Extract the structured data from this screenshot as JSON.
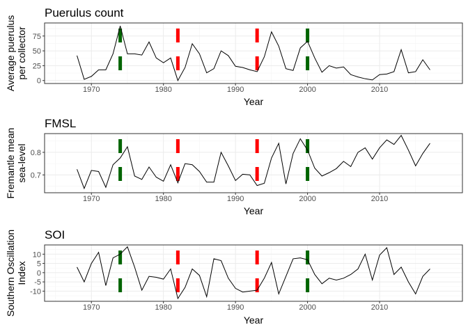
{
  "chart_data": [
    {
      "type": "line",
      "title": "Puerulus count",
      "xlabel": "Year",
      "ylabel": [
        "Average puerulus",
        "per collector"
      ],
      "xlim": [
        1963.5,
        2021.5
      ],
      "ylim": [
        -5,
        97
      ],
      "xticks": [
        1970,
        1980,
        1990,
        2000,
        2010
      ],
      "yticks": [
        0,
        25,
        50,
        75
      ],
      "ytick_labels": [
        "0",
        "25",
        "50",
        "75"
      ],
      "grid": true,
      "series": [
        {
          "x": [
            1968,
            1969,
            1970,
            1971,
            1972,
            1973,
            1974,
            1975,
            1976,
            1977,
            1978,
            1979,
            1980,
            1981,
            1982,
            1983,
            1984,
            1985,
            1986,
            1987,
            1988,
            1989,
            1990,
            1991,
            1992,
            1993,
            1994,
            1995,
            1996,
            1997,
            1998,
            1999,
            2000,
            2001,
            2002,
            2003,
            2004,
            2005,
            2006,
            2007,
            2008,
            2009,
            2010,
            2011,
            2012,
            2013,
            2014,
            2015,
            2016,
            2017
          ],
          "y": [
            42,
            2,
            7,
            18,
            18,
            45,
            92,
            45,
            45,
            43,
            65,
            38,
            30,
            38,
            0,
            22,
            62,
            45,
            13,
            20,
            50,
            42,
            24,
            22,
            18,
            15,
            40,
            82,
            58,
            20,
            17,
            55,
            66,
            38,
            14,
            25,
            21,
            23,
            10,
            6,
            3,
            1,
            10,
            11,
            15,
            52,
            13,
            15,
            35,
            18
          ]
        }
      ]
    },
    {
      "type": "line",
      "title": "FMSL",
      "xlabel": "Year",
      "ylabel": [
        "Fremantle mean",
        "sea-level"
      ],
      "xlim": [
        1963.5,
        2021.5
      ],
      "ylim": [
        0.621,
        0.883
      ],
      "xticks": [
        1970,
        1980,
        1990,
        2000,
        2010
      ],
      "yticks": [
        0.7,
        0.8
      ],
      "ytick_labels": [
        "0.7",
        "0.8"
      ],
      "grid": true,
      "series": [
        {
          "x": [
            1968,
            1969,
            1970,
            1971,
            1972,
            1973,
            1974,
            1975,
            1976,
            1977,
            1978,
            1979,
            1980,
            1981,
            1982,
            1983,
            1984,
            1985,
            1986,
            1987,
            1988,
            1989,
            1990,
            1991,
            1992,
            1993,
            1994,
            1995,
            1996,
            1997,
            1998,
            1999,
            2000,
            2001,
            2002,
            2003,
            2004,
            2005,
            2006,
            2007,
            2008,
            2009,
            2010,
            2011,
            2012,
            2013,
            2014,
            2015,
            2016,
            2017
          ],
          "y": [
            0.725,
            0.64,
            0.72,
            0.715,
            0.645,
            0.745,
            0.775,
            0.825,
            0.695,
            0.68,
            0.735,
            0.69,
            0.672,
            0.745,
            0.665,
            0.75,
            0.745,
            0.715,
            0.668,
            0.668,
            0.8,
            0.74,
            0.675,
            0.703,
            0.7,
            0.653,
            0.663,
            0.775,
            0.84,
            0.66,
            0.795,
            0.86,
            0.81,
            0.73,
            0.695,
            0.71,
            0.728,
            0.76,
            0.737,
            0.8,
            0.82,
            0.77,
            0.82,
            0.855,
            0.835,
            0.875,
            0.81,
            0.74,
            0.795,
            0.84
          ]
        }
      ]
    },
    {
      "type": "line",
      "title": "SOI",
      "xlabel": "Year",
      "ylabel": [
        "Southern Oscillation",
        "Index"
      ],
      "xlim": [
        1963.5,
        2021.5
      ],
      "ylim": [
        -15.5,
        15
      ],
      "xticks": [
        1970,
        1980,
        1990,
        2000,
        2010
      ],
      "yticks": [
        -10,
        -5,
        0,
        5,
        10
      ],
      "ytick_labels": [
        "-10",
        "-5",
        "0",
        "5",
        "10"
      ],
      "grid": true,
      "series": [
        {
          "x": [
            1968,
            1969,
            1970,
            1971,
            1972,
            1973,
            1974,
            1975,
            1976,
            1977,
            1978,
            1979,
            1980,
            1981,
            1982,
            1983,
            1984,
            1985,
            1986,
            1987,
            1988,
            1989,
            1990,
            1991,
            1992,
            1993,
            1994,
            1995,
            1996,
            1997,
            1998,
            1999,
            2000,
            2001,
            2002,
            2003,
            2004,
            2005,
            2006,
            2007,
            2008,
            2009,
            2010,
            2011,
            2012,
            2013,
            2014,
            2015,
            2016,
            2017
          ],
          "y": [
            3,
            -5,
            5,
            11,
            -7,
            8,
            10,
            14,
            3,
            -9.5,
            -2,
            -2.5,
            -3.5,
            2,
            -14,
            -8,
            2,
            -1.5,
            -13,
            7.5,
            6.5,
            -3,
            -8.5,
            -10.5,
            -10,
            -9.5,
            -3,
            5.5,
            -11.5,
            -2,
            7.5,
            8,
            7,
            -1,
            -6,
            -3,
            -4,
            -3,
            -1,
            2,
            10,
            -4,
            9.5,
            13.5,
            -1,
            3,
            -5,
            -11.5,
            -2,
            2
          ]
        }
      ]
    }
  ],
  "markers": {
    "green": {
      "color": "#006400",
      "years": [
        1974,
        2000
      ]
    },
    "red": {
      "color": "#ff0000",
      "years": [
        1982,
        1993
      ]
    }
  }
}
